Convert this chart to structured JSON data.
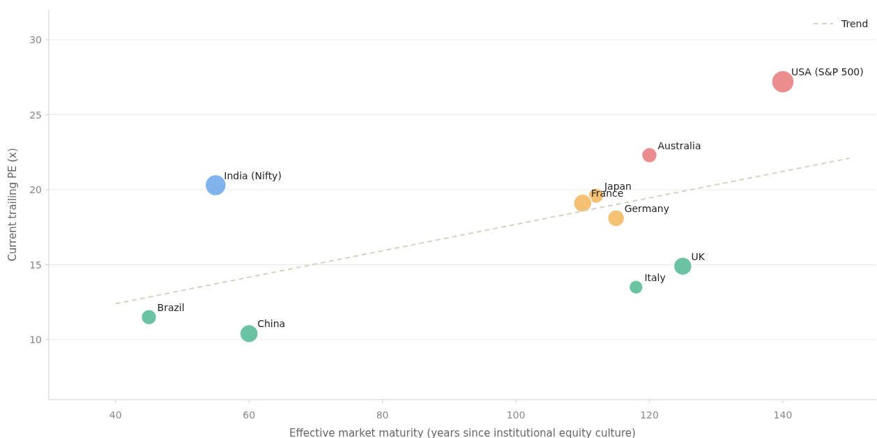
{
  "chart_data": {
    "type": "bubble",
    "xlabel": "Effective market maturity (years since institutional equity culture)",
    "ylabel": "Current trailing PE (x)",
    "xlim": [
      30,
      154
    ],
    "xticks": [
      40,
      60,
      80,
      100,
      120,
      140
    ],
    "ylim": [
      6,
      32
    ],
    "yticks": [
      10,
      15,
      20,
      25,
      30
    ],
    "grid": "y",
    "legend": "top right",
    "series": [
      {
        "x": [
          140,
          120,
          55,
          112,
          110,
          115,
          125,
          118,
          45,
          60
        ],
        "values": [
          27.2,
          22.3,
          20.3,
          19.6,
          19.1,
          18.1,
          14.9,
          13.5,
          11.5,
          10.4
        ],
        "sizes": [
          1,
          0.47,
          0.88,
          0.47,
          0.66,
          0.56,
          0.66,
          0.39,
          0.47,
          0.66
        ],
        "colors": [
          "#e8797a",
          "#e8797a",
          "#6aa6e8",
          "#f2b55a",
          "#f2b55a",
          "#f2b55a",
          "#52b890",
          "#52b890",
          "#52b890",
          "#52b890"
        ]
      },
      {
        "type": "line",
        "name": "Trend",
        "color": "#d6d2c4",
        "line_style": "dashed",
        "x": [
          40,
          150
        ],
        "values": [
          12.4,
          22.1
        ]
      }
    ],
    "annotations": [
      {
        "text": "USA (S&P 500)",
        "x": 140,
        "y": 27.2
      },
      {
        "text": "Australia",
        "x": 120,
        "y": 22.3
      },
      {
        "text": "India (Nifty)",
        "x": 55,
        "y": 20.3
      },
      {
        "text": "Japan",
        "x": 112,
        "y": 19.6
      },
      {
        "text": "France",
        "x": 110,
        "y": 19.1
      },
      {
        "text": "Germany",
        "x": 115,
        "y": 18.1
      },
      {
        "text": "UK",
        "x": 125,
        "y": 14.9
      },
      {
        "text": "Italy",
        "x": 118,
        "y": 13.5
      },
      {
        "text": "Brazil",
        "x": 45,
        "y": 11.5
      },
      {
        "text": "China",
        "x": 60,
        "y": 10.4
      }
    ]
  }
}
